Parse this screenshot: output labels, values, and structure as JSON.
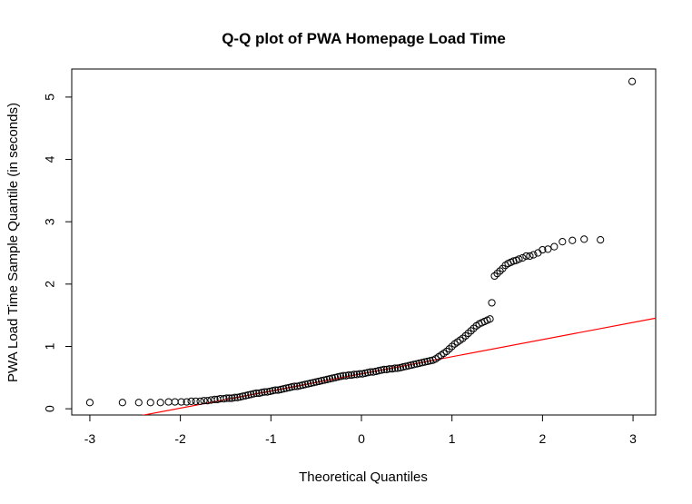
{
  "chart_data": {
    "type": "scatter",
    "title": "Q-Q plot of PWA Homepage Load Time",
    "xlabel": "Theoretical Quantiles",
    "ylabel": "PWA Load Time Sample Quantile (in seconds)",
    "xlim": [
      -3.2,
      3.25
    ],
    "ylim": [
      -0.1,
      5.45
    ],
    "xticks": [
      "-3",
      "-2",
      "-1",
      "0",
      "1",
      "2",
      "3"
    ],
    "yticks": [
      "0",
      "1",
      "2",
      "3",
      "4",
      "5"
    ],
    "grid": false,
    "legend": "none",
    "reference_line": {
      "intercept": 0.56,
      "slope": 0.275,
      "color": "#ff0000"
    },
    "point_color": "#000000",
    "points": {
      "x": [
        -3.0,
        -2.64,
        -2.46,
        -2.33,
        -2.22,
        -2.13,
        -2.06,
        -1.99,
        -1.93,
        -1.88,
        -1.83,
        -1.78,
        -1.74,
        -1.7,
        -1.66,
        -1.62,
        -1.59,
        -1.56,
        -1.52,
        -1.49,
        -1.46,
        -1.43,
        -1.4,
        -1.37,
        -1.34,
        -1.31,
        -1.28,
        -1.25,
        -1.22,
        -1.19,
        -1.16,
        -1.13,
        -1.1,
        -1.07,
        -1.04,
        -1.01,
        -0.98,
        -0.95,
        -0.92,
        -0.89,
        -0.86,
        -0.83,
        -0.8,
        -0.77,
        -0.74,
        -0.71,
        -0.68,
        -0.65,
        -0.62,
        -0.59,
        -0.56,
        -0.53,
        -0.5,
        -0.47,
        -0.44,
        -0.41,
        -0.38,
        -0.35,
        -0.32,
        -0.29,
        -0.26,
        -0.23,
        -0.2,
        -0.17,
        -0.14,
        -0.11,
        -0.08,
        -0.05,
        -0.02,
        0.01,
        0.04,
        0.07,
        0.1,
        0.13,
        0.16,
        0.19,
        0.22,
        0.25,
        0.28,
        0.31,
        0.34,
        0.37,
        0.4,
        0.43,
        0.46,
        0.49,
        0.52,
        0.55,
        0.58,
        0.61,
        0.64,
        0.67,
        0.7,
        0.73,
        0.76,
        0.79,
        0.82,
        0.85,
        0.88,
        0.91,
        0.94,
        0.97,
        1.0,
        1.03,
        1.06,
        1.09,
        1.12,
        1.15,
        1.18,
        1.21,
        1.24,
        1.27,
        1.3,
        1.33,
        1.36,
        1.39,
        1.42,
        1.44,
        1.47,
        1.5,
        1.53,
        1.56,
        1.59,
        1.62,
        1.65,
        1.68,
        1.71,
        1.74,
        1.78,
        1.82,
        1.86,
        1.9,
        1.95,
        2.0,
        2.06,
        2.13,
        2.22,
        2.33,
        2.46,
        2.64,
        2.99
      ],
      "y": [
        0.1,
        0.1,
        0.1,
        0.1,
        0.1,
        0.11,
        0.11,
        0.11,
        0.11,
        0.12,
        0.12,
        0.12,
        0.13,
        0.13,
        0.14,
        0.15,
        0.15,
        0.16,
        0.16,
        0.17,
        0.17,
        0.17,
        0.18,
        0.18,
        0.19,
        0.2,
        0.21,
        0.22,
        0.23,
        0.24,
        0.25,
        0.25,
        0.26,
        0.27,
        0.27,
        0.28,
        0.29,
        0.3,
        0.3,
        0.31,
        0.32,
        0.33,
        0.34,
        0.35,
        0.36,
        0.36,
        0.37,
        0.38,
        0.39,
        0.4,
        0.41,
        0.42,
        0.43,
        0.44,
        0.45,
        0.46,
        0.47,
        0.48,
        0.49,
        0.5,
        0.51,
        0.52,
        0.53,
        0.53,
        0.54,
        0.54,
        0.55,
        0.55,
        0.56,
        0.56,
        0.57,
        0.58,
        0.59,
        0.59,
        0.6,
        0.61,
        0.62,
        0.63,
        0.63,
        0.64,
        0.64,
        0.65,
        0.65,
        0.66,
        0.67,
        0.68,
        0.69,
        0.7,
        0.71,
        0.72,
        0.73,
        0.74,
        0.75,
        0.76,
        0.77,
        0.78,
        0.8,
        0.83,
        0.86,
        0.89,
        0.92,
        0.96,
        1.0,
        1.04,
        1.07,
        1.1,
        1.13,
        1.17,
        1.21,
        1.25,
        1.29,
        1.33,
        1.36,
        1.38,
        1.4,
        1.42,
        1.44,
        1.7,
        2.13,
        2.17,
        2.21,
        2.25,
        2.3,
        2.33,
        2.35,
        2.37,
        2.38,
        2.4,
        2.42,
        2.45,
        2.45,
        2.47,
        2.5,
        2.55,
        2.56,
        2.6,
        2.68,
        2.7,
        2.72,
        2.71,
        5.25
      ]
    }
  }
}
